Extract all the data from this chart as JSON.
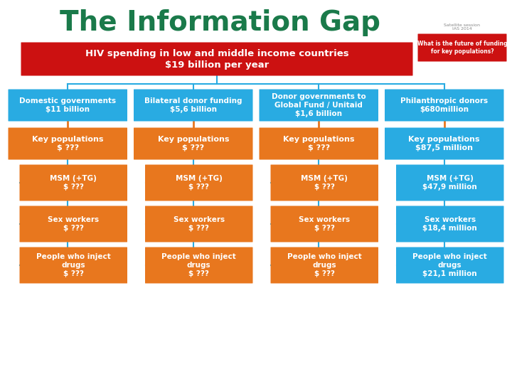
{
  "title": "The Information Gap",
  "title_color": "#1a7a4a",
  "bg_color": "#ffffff",
  "blue_color": "#29abe2",
  "orange_color": "#e8771e",
  "red_color": "#cc1111",
  "connector_color": "#29abe2",
  "orange_connector": "#e8771e",
  "subtitle_line1": "HIV spending in low and middle income countries",
  "subtitle_line2": "$19 billion per year",
  "logo_text": "Satellite session\nIAS 2014",
  "logo_q1": "What is the future of funding",
  "logo_q2": "for key populations?",
  "title_fontsize": 28,
  "sub1_fontsize": 10,
  "sub2_fontsize": 12,
  "header_fontsize": 7.5,
  "kp_fontsize": 8,
  "sub_fontsize": 7.5,
  "columns": [
    {
      "header_line1": "Domestic governments",
      "header_line2": "$11 billion",
      "header_color": "#29abe2",
      "kp_line1": "Key populations",
      "kp_line2": "$ ???",
      "kp_color": "#e8771e",
      "sub_items": [
        {
          "line1": "MSM (+TG)",
          "line2": "$ ???",
          "color": "#e8771e"
        },
        {
          "line1": "Sex workers",
          "line2": "$ ???",
          "color": "#e8771e"
        },
        {
          "line1": "People who inject\ndrugs",
          "line2": "$ ???",
          "color": "#e8771e"
        }
      ]
    },
    {
      "header_line1": "Bilateral donor funding",
      "header_line2": "$5,6 billion",
      "header_color": "#29abe2",
      "kp_line1": "Key populations",
      "kp_line2": "$ ???",
      "kp_color": "#e8771e",
      "sub_items": [
        {
          "line1": "MSM (+TG)",
          "line2": "$ ???",
          "color": "#e8771e"
        },
        {
          "line1": "Sex workers",
          "line2": "$ ???",
          "color": "#e8771e"
        },
        {
          "line1": "People who inject\ndrugs",
          "line2": "$ ???",
          "color": "#e8771e"
        }
      ]
    },
    {
      "header_line1": "Donor governments to\nGlobal Fund / Unitaid",
      "header_line2": "$1,6 billion",
      "header_color": "#29abe2",
      "kp_line1": "Key populations",
      "kp_line2": "$ ???",
      "kp_color": "#e8771e",
      "sub_items": [
        {
          "line1": "MSM (+TG)",
          "line2": "$ ???",
          "color": "#e8771e"
        },
        {
          "line1": "Sex workers",
          "line2": "$ ???",
          "color": "#e8771e"
        },
        {
          "line1": "People who inject\ndrugs",
          "line2": "$ ???",
          "color": "#e8771e"
        }
      ]
    },
    {
      "header_line1": "Philanthropic donors",
      "header_line2": "$680million",
      "header_color": "#29abe2",
      "kp_line1": "Key populations",
      "kp_line2": "$87,5 million",
      "kp_color": "#29abe2",
      "sub_items": [
        {
          "line1": "MSM (+TG)",
          "line2": "$47,9 million",
          "color": "#29abe2"
        },
        {
          "line1": "Sex workers",
          "line2": "$18,4 million",
          "color": "#29abe2"
        },
        {
          "line1": "People who inject\ndrugs",
          "line2": "$21,1 million",
          "color": "#29abe2"
        }
      ]
    }
  ]
}
